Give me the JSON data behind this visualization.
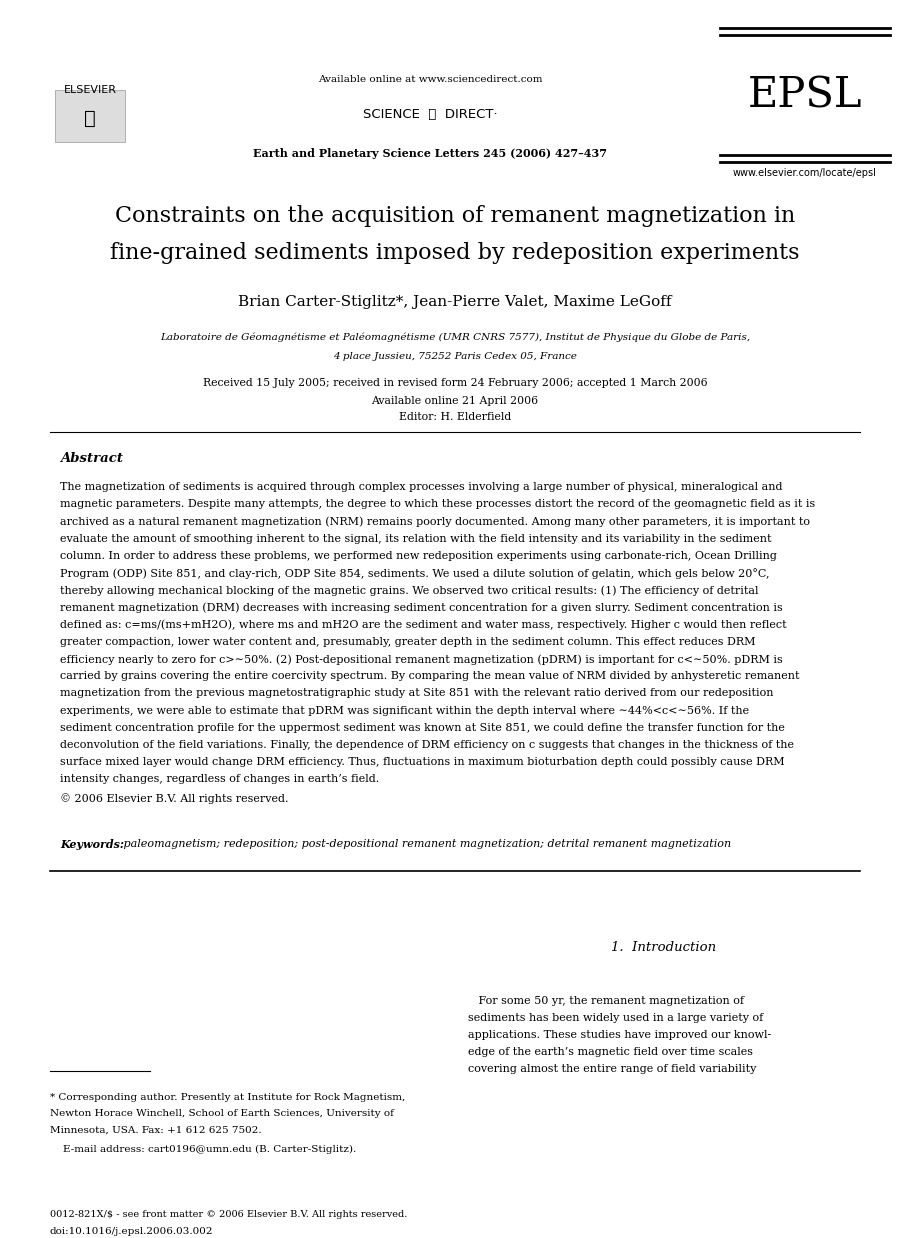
{
  "background_color": "#ffffff",
  "header": {
    "available_online": "Available online at www.sciencedirect.com",
    "journal_name": "Earth and Planetary Science Letters 245 (2006) 427–437",
    "epsl": "EPSL",
    "website": "www.elsevier.com/locate/epsl"
  },
  "title_line1": "Constraints on the acquisition of remanent magnetization in",
  "title_line2": "fine-grained sediments imposed by redeposition experiments",
  "authors": "Brian Carter-Stiglitz*, Jean-Pierre Valet, Maxime LeGoff",
  "affiliation_line1": "Laboratoire de Géomagnétisme et Paléomagnétisme (UMR CNRS 7577), Institut de Physique du Globe de Paris,",
  "affiliation_line2": "4 place Jussieu, 75252 Paris Cedex 05, France",
  "received_line1": "Received 15 July 2005; received in revised form 24 February 2006; accepted 1 March 2006",
  "received_line2": "Available online 21 April 2006",
  "received_line3": "Editor: H. Elderfield",
  "abstract_title": "Abstract",
  "abstract_lines": [
    "The magnetization of sediments is acquired through complex processes involving a large number of physical, mineralogical and",
    "magnetic parameters. Despite many attempts, the degree to which these processes distort the record of the geomagnetic field as it is",
    "archived as a natural remanent magnetization (NRM) remains poorly documented. Among many other parameters, it is important to",
    "evaluate the amount of smoothing inherent to the signal, its relation with the field intensity and its variability in the sediment",
    "column. In order to address these problems, we performed new redeposition experiments using carbonate-rich, Ocean Drilling",
    "Program (ODP) Site 851, and clay-rich, ODP Site 854, sediments. We used a dilute solution of gelatin, which gels below 20°C,",
    "thereby allowing mechanical blocking of the magnetic grains. We observed two critical results: (1) The efficiency of detrital",
    "remanent magnetization (DRM) decreases with increasing sediment concentration for a given slurry. Sediment concentration is",
    "defined as: c=ms/(ms+mH2O), where ms and mH2O are the sediment and water mass, respectively. Higher c would then reflect",
    "greater compaction, lower water content and, presumably, greater depth in the sediment column. This effect reduces DRM",
    "efficiency nearly to zero for c>∼50%. (2) Post-depositional remanent magnetization (pDRM) is important for c<∼50%. pDRM is",
    "carried by grains covering the entire coercivity spectrum. By comparing the mean value of NRM divided by anhysteretic remanent",
    "magnetization from the previous magnetostratigraphic study at Site 851 with the relevant ratio derived from our redeposition",
    "experiments, we were able to estimate that pDRM was significant within the depth interval where ∼44%<c<∼56%. If the",
    "sediment concentration profile for the uppermost sediment was known at Site 851, we could define the transfer function for the",
    "deconvolution of the field variations. Finally, the dependence of DRM efficiency on c suggests that changes in the thickness of the",
    "surface mixed layer would change DRM efficiency. Thus, fluctuations in maximum bioturbation depth could possibly cause DRM",
    "intensity changes, regardless of changes in earth’s field."
  ],
  "copyright": "© 2006 Elsevier B.V. All rights reserved.",
  "keywords_label": "Keywords:",
  "keywords": " paleomagnetism; redeposition; post-depositional remanent magnetization; detrital remanent magnetization",
  "section_title": "1.  Introduction",
  "intro_lines": [
    "   For some 50 yr, the remanent magnetization of",
    "sediments has been widely used in a large variety of",
    "applications. These studies have improved our knowl-",
    "edge of the earth’s magnetic field over time scales",
    "covering almost the entire range of field variability"
  ],
  "footnote_lines": [
    "* Corresponding author. Presently at Institute for Rock Magnetism,",
    "Newton Horace Winchell, School of Earth Sciences, University of",
    "Minnesota, USA. Fax: +1 612 625 7502."
  ],
  "footnote_email": "    E-mail address: cart0196@umn.edu (B. Carter-Stiglitz).",
  "footer_issn": "0012-821X/$ - see front matter © 2006 Elsevier B.V. All rights reserved.",
  "footer_doi": "doi:10.1016/j.epsl.2006.03.002"
}
